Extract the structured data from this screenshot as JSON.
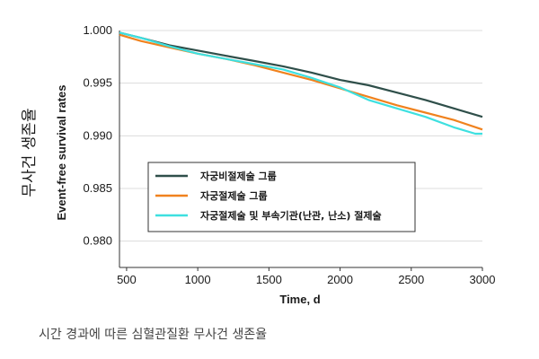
{
  "chart_data": {
    "type": "line",
    "title": "",
    "xlabel": "Time, d",
    "ylabel": "Event-free survival rates",
    "outer_ylabel": "무사건 생존율",
    "xlim": [
      450,
      3000
    ],
    "ylim": [
      0.9775,
      1.0
    ],
    "xticks": [
      "500",
      "1000",
      "1500",
      "2000",
      "2500",
      "3000"
    ],
    "yticks": [
      "1.000",
      "0.995",
      "0.990",
      "0.985",
      "0.980"
    ],
    "grid": "horizontal",
    "legend_position": "center-left inside",
    "series": [
      {
        "name": "자궁비절제술 그룹",
        "color": "#2f4f4a",
        "x": [
          450,
          600,
          800,
          1000,
          1200,
          1400,
          1600,
          1800,
          2000,
          2200,
          2400,
          2600,
          2800,
          3000
        ],
        "y": [
          0.9998,
          0.9993,
          0.9986,
          0.9981,
          0.9976,
          0.9971,
          0.9966,
          0.996,
          0.9953,
          0.9948,
          0.9941,
          0.9934,
          0.9926,
          0.9918
        ]
      },
      {
        "name": "자궁절제술 그룹",
        "color": "#f0821e",
        "x": [
          450,
          600,
          800,
          1000,
          1200,
          1400,
          1600,
          1800,
          2000,
          2200,
          2400,
          2600,
          2800,
          3000
        ],
        "y": [
          0.9996,
          0.999,
          0.9984,
          0.9978,
          0.9973,
          0.9967,
          0.996,
          0.9953,
          0.9945,
          0.9937,
          0.9929,
          0.9922,
          0.9915,
          0.9906
        ]
      },
      {
        "name": "자궁절제술 및 부속기관(난관, 난소) 절제술",
        "color": "#3ee0e0",
        "x": [
          450,
          600,
          800,
          1000,
          1200,
          1400,
          1600,
          1800,
          2000,
          2200,
          2400,
          2600,
          2800,
          2950,
          3000
        ],
        "y": [
          0.9998,
          0.9993,
          0.9985,
          0.9978,
          0.9973,
          0.9968,
          0.9963,
          0.9955,
          0.9946,
          0.9934,
          0.9926,
          0.9918,
          0.9908,
          0.9902,
          0.9902
        ]
      }
    ]
  },
  "caption": "시간 경과에 따른 심혈관질환 무사건 생존율"
}
